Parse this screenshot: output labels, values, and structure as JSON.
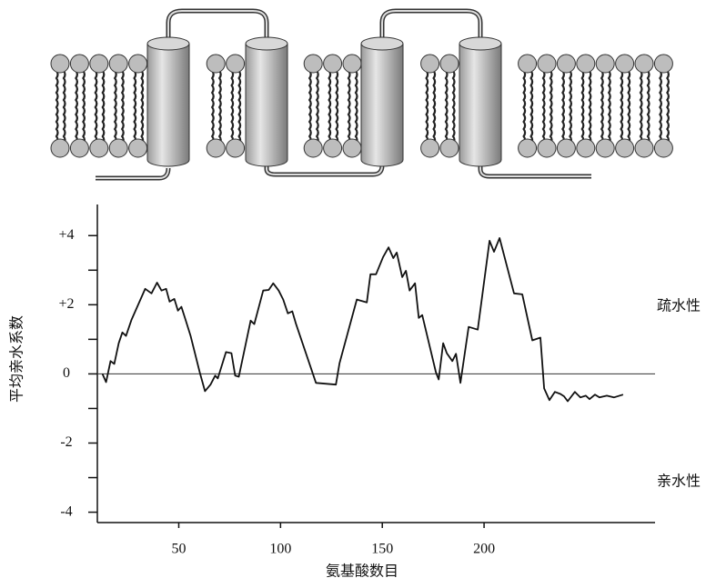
{
  "chart_data": {
    "type": "line",
    "x_label": "氨基酸数目",
    "y_label": "平均亲水系数",
    "annotations": [
      "疏水性",
      "亲水性"
    ],
    "series": [
      {
        "color": "#111111",
        "x": [
          12.5,
          14.3,
          16.5,
          18.3,
          20.5,
          22.3,
          24.1,
          26.8,
          33.5,
          36.6,
          39.3,
          41.5,
          43.8,
          45.5,
          47.8,
          49.6,
          51.3,
          53.6,
          55.8,
          60.3,
          62.9,
          65.6,
          67.9,
          69.2,
          73.2,
          75.9,
          77.7,
          79.5,
          85.3,
          87.1,
          91.5,
          94.2,
          96.4,
          99.1,
          101.3,
          103.6,
          105.8,
          107.6,
          117.4,
          127.2,
          129.0,
          137.5,
          142.4,
          144.2,
          146.9,
          150.4,
          153.1,
          155.4,
          157.1,
          159.8,
          161.6,
          163.4,
          166.1,
          167.9,
          169.6,
          176.3,
          177.7,
          179.9,
          181.7,
          184.4,
          186.2,
          188.4,
          192.4,
          196.9,
          202.7,
          204.9,
          207.6,
          214.7,
          218.8,
          223.7,
          227.7,
          229.5,
          232.1,
          234.8,
          237.5,
          239.3,
          241.1,
          244.6,
          247.3,
          250.0,
          251.8,
          254.5,
          256.7,
          260.3,
          263.8,
          268.3
        ],
        "values": [
          0,
          -0.24,
          0.37,
          0.29,
          0.89,
          1.2,
          1.1,
          1.57,
          2.46,
          2.33,
          2.64,
          2.41,
          2.46,
          2.09,
          2.17,
          1.83,
          1.94,
          1.52,
          1.1,
          0.05,
          -0.5,
          -0.31,
          -0.05,
          -0.13,
          0.63,
          0.6,
          -0.05,
          -0.08,
          1.54,
          1.44,
          2.41,
          2.43,
          2.62,
          2.41,
          2.15,
          1.75,
          1.81,
          1.44,
          -0.26,
          -0.31,
          0.31,
          2.15,
          2.07,
          2.88,
          2.88,
          3.38,
          3.66,
          3.35,
          3.51,
          2.8,
          2.98,
          2.41,
          2.62,
          1.62,
          1.7,
          0.05,
          -0.16,
          0.89,
          0.6,
          0.37,
          0.58,
          -0.26,
          1.36,
          1.28,
          3.85,
          3.53,
          3.93,
          2.33,
          2.3,
          0.97,
          1.05,
          -0.42,
          -0.76,
          -0.52,
          -0.58,
          -0.65,
          -0.79,
          -0.52,
          -0.68,
          -0.63,
          -0.73,
          -0.6,
          -0.68,
          -0.63,
          -0.68,
          -0.6
        ]
      }
    ],
    "xlim": [
      10,
      284
    ],
    "ylim": [
      -4.3,
      4.9
    ],
    "xticks": [
      50,
      100,
      150,
      200
    ],
    "yticks": [
      {
        "value": 4,
        "label": "+4"
      },
      {
        "value": 2,
        "label": "+2"
      },
      0,
      -2,
      -4
    ],
    "yminor_ticks": [
      3,
      1,
      -1,
      -3
    ],
    "zero_line": true
  }
}
